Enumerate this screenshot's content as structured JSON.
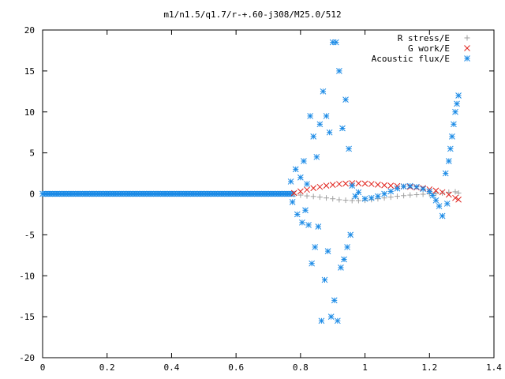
{
  "chart_data": {
    "type": "scatter",
    "title": "m1/n1.5/q1.7/r-+.60-j308/M25.0/512",
    "xlabel": "",
    "ylabel": "",
    "xlim": [
      0,
      1.4
    ],
    "ylim": [
      -20,
      20
    ],
    "x_ticks": [
      "0",
      "0.2",
      "0.4",
      "0.6",
      "0.8",
      "1",
      "1.2",
      "1.4"
    ],
    "y_ticks": [
      "20",
      "15",
      "10",
      "5",
      "0",
      "-5",
      "-10",
      "-15",
      "-20"
    ],
    "x_tick_values": [
      0,
      0.2,
      0.4,
      0.6,
      0.8,
      1,
      1.2,
      1.4
    ],
    "y_tick_values": [
      20,
      15,
      10,
      5,
      0,
      -5,
      -10,
      -15,
      -20
    ],
    "grid": false,
    "legend_position": "top-right",
    "series": [
      {
        "name": "R stress/E",
        "marker": "plus",
        "color": "#a0a0a0",
        "points": [
          [
            0.78,
            -0.05
          ],
          [
            0.8,
            -0.15
          ],
          [
            0.82,
            -0.25
          ],
          [
            0.84,
            -0.32
          ],
          [
            0.86,
            -0.4
          ],
          [
            0.88,
            -0.5
          ],
          [
            0.9,
            -0.6
          ],
          [
            0.92,
            -0.72
          ],
          [
            0.94,
            -0.78
          ],
          [
            0.96,
            -0.82
          ],
          [
            0.98,
            -0.82
          ],
          [
            1.0,
            -0.78
          ],
          [
            1.02,
            -0.7
          ],
          [
            1.04,
            -0.6
          ],
          [
            1.06,
            -0.5
          ],
          [
            1.08,
            -0.4
          ],
          [
            1.1,
            -0.3
          ],
          [
            1.12,
            -0.22
          ],
          [
            1.14,
            -0.15
          ],
          [
            1.16,
            -0.1
          ],
          [
            1.18,
            -0.05
          ],
          [
            1.2,
            0.0
          ],
          [
            1.22,
            0.05
          ],
          [
            1.24,
            0.1
          ],
          [
            1.26,
            0.2
          ],
          [
            1.28,
            0.25
          ],
          [
            1.29,
            0.1
          ]
        ]
      },
      {
        "name": "G work/E",
        "marker": "cross",
        "color": "#e0201a",
        "points": [
          [
            0.78,
            0.1
          ],
          [
            0.8,
            0.3
          ],
          [
            0.82,
            0.5
          ],
          [
            0.84,
            0.7
          ],
          [
            0.86,
            0.85
          ],
          [
            0.88,
            1.0
          ],
          [
            0.9,
            1.1
          ],
          [
            0.92,
            1.2
          ],
          [
            0.94,
            1.25
          ],
          [
            0.96,
            1.3
          ],
          [
            0.98,
            1.28
          ],
          [
            1.0,
            1.25
          ],
          [
            1.02,
            1.2
          ],
          [
            1.04,
            1.12
          ],
          [
            1.06,
            1.05
          ],
          [
            1.08,
            1.0
          ],
          [
            1.1,
            0.95
          ],
          [
            1.12,
            0.9
          ],
          [
            1.14,
            0.85
          ],
          [
            1.16,
            0.78
          ],
          [
            1.18,
            0.7
          ],
          [
            1.2,
            0.55
          ],
          [
            1.22,
            0.4
          ],
          [
            1.24,
            0.2
          ],
          [
            1.26,
            -0.1
          ],
          [
            1.28,
            -0.5
          ],
          [
            1.29,
            -0.7
          ]
        ]
      },
      {
        "name": "Acoustic flux/E",
        "marker": "star",
        "color": "#1a8ae6",
        "points": [
          [
            0.77,
            1.5
          ],
          [
            0.775,
            -1.0
          ],
          [
            0.785,
            3.0
          ],
          [
            0.79,
            -2.5
          ],
          [
            0.8,
            2.0
          ],
          [
            0.805,
            -3.5
          ],
          [
            0.81,
            4.0
          ],
          [
            0.815,
            -2.0
          ],
          [
            0.82,
            1.2
          ],
          [
            0.825,
            -3.8
          ],
          [
            0.83,
            9.5
          ],
          [
            0.835,
            -8.5
          ],
          [
            0.84,
            7.0
          ],
          [
            0.845,
            -6.5
          ],
          [
            0.85,
            4.5
          ],
          [
            0.855,
            -4.0
          ],
          [
            0.86,
            8.5
          ],
          [
            0.865,
            -15.5
          ],
          [
            0.87,
            12.5
          ],
          [
            0.875,
            -10.5
          ],
          [
            0.88,
            9.5
          ],
          [
            0.885,
            -7.0
          ],
          [
            0.89,
            7.5
          ],
          [
            0.895,
            -15.0
          ],
          [
            0.9,
            18.5
          ],
          [
            0.905,
            -13.0
          ],
          [
            0.91,
            18.5
          ],
          [
            0.915,
            -15.5
          ],
          [
            0.92,
            15.0
          ],
          [
            0.925,
            -9.0
          ],
          [
            0.93,
            8.0
          ],
          [
            0.935,
            -8.0
          ],
          [
            0.94,
            11.5
          ],
          [
            0.945,
            -6.5
          ],
          [
            0.95,
            5.5
          ],
          [
            0.955,
            -5.0
          ],
          [
            0.96,
            1.0
          ],
          [
            0.97,
            -0.3
          ],
          [
            0.98,
            0.2
          ],
          [
            1.0,
            -0.6
          ],
          [
            1.02,
            -0.5
          ],
          [
            1.04,
            -0.3
          ],
          [
            1.06,
            0.0
          ],
          [
            1.08,
            0.3
          ],
          [
            1.1,
            0.65
          ],
          [
            1.12,
            0.9
          ],
          [
            1.14,
            0.95
          ],
          [
            1.16,
            0.85
          ],
          [
            1.18,
            0.6
          ],
          [
            1.2,
            0.3
          ],
          [
            1.21,
            -0.2
          ],
          [
            1.22,
            -0.8
          ],
          [
            1.23,
            -1.5
          ],
          [
            1.24,
            -2.7
          ],
          [
            1.25,
            2.5
          ],
          [
            1.255,
            -1.2
          ],
          [
            1.26,
            4.0
          ],
          [
            1.265,
            5.5
          ],
          [
            1.27,
            7.0
          ],
          [
            1.275,
            8.5
          ],
          [
            1.28,
            10.0
          ],
          [
            1.285,
            11.0
          ],
          [
            1.29,
            12.0
          ]
        ]
      }
    ]
  }
}
